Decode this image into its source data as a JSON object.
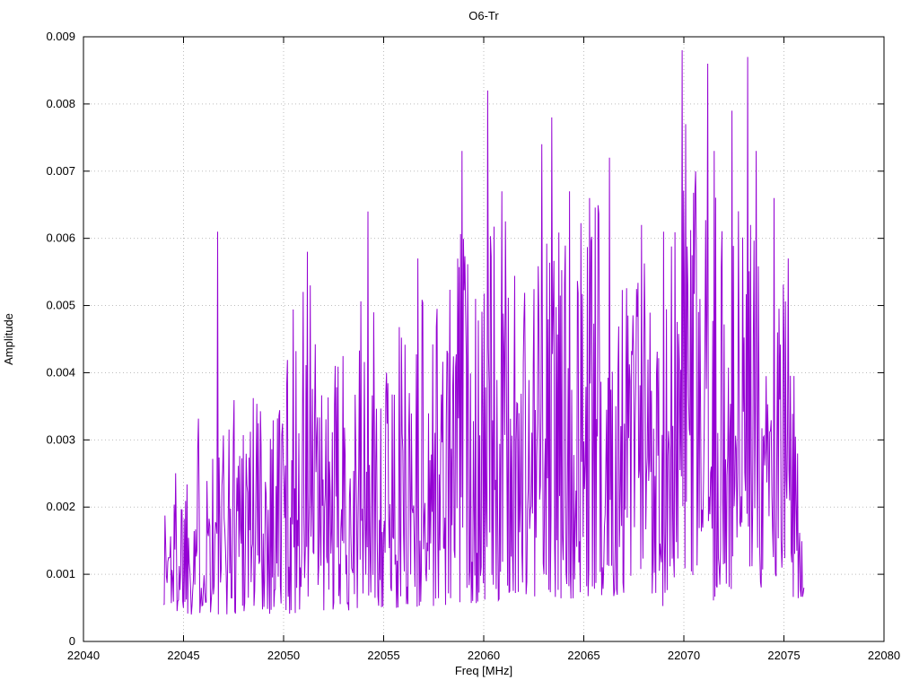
{
  "chart_data": {
    "type": "line",
    "title": "O6-Tr",
    "xlabel": "Freq [MHz]",
    "ylabel": "Amplitude",
    "xlim": [
      22040,
      22080
    ],
    "ylim": [
      0,
      0.009
    ],
    "x_ticks": [
      22040,
      22045,
      22050,
      22055,
      22060,
      22065,
      22070,
      22075,
      22080
    ],
    "y_ticks": [
      0,
      0.001,
      0.002,
      0.003,
      0.004,
      0.005,
      0.006,
      0.007,
      0.008,
      0.009
    ],
    "y_tick_labels": [
      "0",
      "0.001",
      "0.002",
      "0.003",
      "0.004",
      "0.005",
      "0.006",
      "0.007",
      "0.008",
      "0.009"
    ],
    "grid": true,
    "legend": "none",
    "background": "#ffffff",
    "axis_color": "#000000",
    "grid_color": "#bdbdbd",
    "line_color": "#9400d3",
    "series": {
      "name": "O6-Tr",
      "x_start": 22044.0,
      "x_end": 22076.0,
      "samples": 900,
      "seed": 1337,
      "noise_exponent": 1.55,
      "envelope_bottom": [
        [
          22044,
          0.0004
        ],
        [
          22050,
          0.0004
        ],
        [
          22056,
          0.0005
        ],
        [
          22062,
          0.0006
        ],
        [
          22068,
          0.0007
        ],
        [
          22074,
          0.0008
        ],
        [
          22076,
          0.0006
        ]
      ],
      "envelope_top": [
        [
          22044,
          0.0024
        ],
        [
          22045,
          0.003
        ],
        [
          22046,
          0.0037
        ],
        [
          22047,
          0.0032
        ],
        [
          22048,
          0.0048
        ],
        [
          22049,
          0.0038
        ],
        [
          22050,
          0.0045
        ],
        [
          22051,
          0.0056
        ],
        [
          22052,
          0.0038
        ],
        [
          22053,
          0.0044
        ],
        [
          22054,
          0.0052
        ],
        [
          22055,
          0.0046
        ],
        [
          22056,
          0.0048
        ],
        [
          22057,
          0.0056
        ],
        [
          22058,
          0.0052
        ],
        [
          22059,
          0.0064
        ],
        [
          22060,
          0.0066
        ],
        [
          22061,
          0.0063
        ],
        [
          22062,
          0.0058
        ],
        [
          22063,
          0.0062
        ],
        [
          22064,
          0.0064
        ],
        [
          22065,
          0.0066
        ],
        [
          22066,
          0.0068
        ],
        [
          22067,
          0.0057
        ],
        [
          22068,
          0.0061
        ],
        [
          22069,
          0.006
        ],
        [
          22070,
          0.0068
        ],
        [
          22071,
          0.0072
        ],
        [
          22072,
          0.0064
        ],
        [
          22073,
          0.0068
        ],
        [
          22074,
          0.0064
        ],
        [
          22075,
          0.0056
        ],
        [
          22075.6,
          0.0038
        ],
        [
          22076,
          0.0014
        ]
      ],
      "peaks": [
        [
          22046.7,
          0.0061
        ],
        [
          22051.2,
          0.0058
        ],
        [
          22051.35,
          0.0053
        ],
        [
          22054.2,
          0.0064
        ],
        [
          22056.7,
          0.0057
        ],
        [
          22058.9,
          0.0073
        ],
        [
          22060.2,
          0.0082
        ],
        [
          22060.9,
          0.0067
        ],
        [
          22062.9,
          0.0074
        ],
        [
          22063.4,
          0.0078
        ],
        [
          22064.3,
          0.0067
        ],
        [
          22065.3,
          0.0066
        ],
        [
          22066.3,
          0.0072
        ],
        [
          22067.9,
          0.0062
        ],
        [
          22069.0,
          0.0061
        ],
        [
          22069.9,
          0.0088
        ],
        [
          22070.1,
          0.0077
        ],
        [
          22071.2,
          0.0086
        ],
        [
          22071.5,
          0.0073
        ],
        [
          22072.4,
          0.0079
        ],
        [
          22073.2,
          0.0087
        ],
        [
          22073.6,
          0.0073
        ],
        [
          22074.5,
          0.0066
        ],
        [
          22075.2,
          0.0057
        ]
      ]
    }
  }
}
